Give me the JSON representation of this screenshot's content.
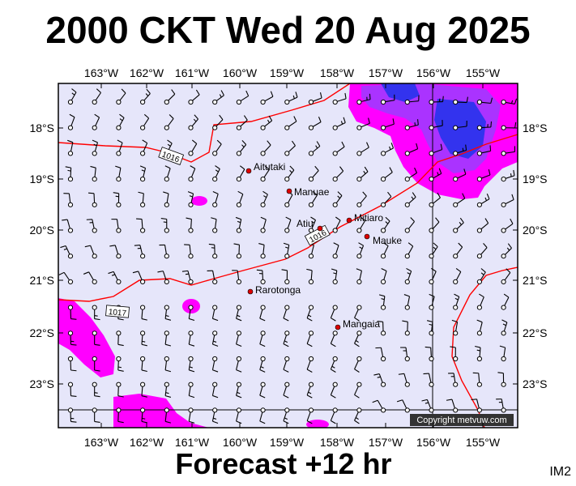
{
  "title": "2000 CKT Wed 20 Aug 2025",
  "subtitle": "Forecast +12 hr",
  "product_code": "IM2",
  "copyright": "Copyright metvuw.com",
  "map": {
    "lon_labels": [
      "163°W",
      "162°W",
      "161°W",
      "160°W",
      "159°W",
      "158°W",
      "157°W",
      "156°W",
      "155°W"
    ],
    "lat_labels": [
      "18°S",
      "19°S",
      "20°S",
      "21°S",
      "22°S",
      "23°S"
    ],
    "places": [
      {
        "name": "Aitutaki"
      },
      {
        "name": "Manuae"
      },
      {
        "name": "Mitiaro"
      },
      {
        "name": "Atiu"
      },
      {
        "name": "Mauke"
      },
      {
        "name": "Rarotonga"
      },
      {
        "name": "Mangaia"
      }
    ],
    "isobars": [
      {
        "label": "1016"
      },
      {
        "label": "1016"
      },
      {
        "label": "1017"
      }
    ],
    "colors": {
      "background": "#e6e6fa",
      "isobar": "#ff0000",
      "rain_light": "#ff00ff",
      "rain_medium": "#aa33ff",
      "rain_heavy": "#3333ee",
      "place_marker": "#dd0000"
    }
  }
}
